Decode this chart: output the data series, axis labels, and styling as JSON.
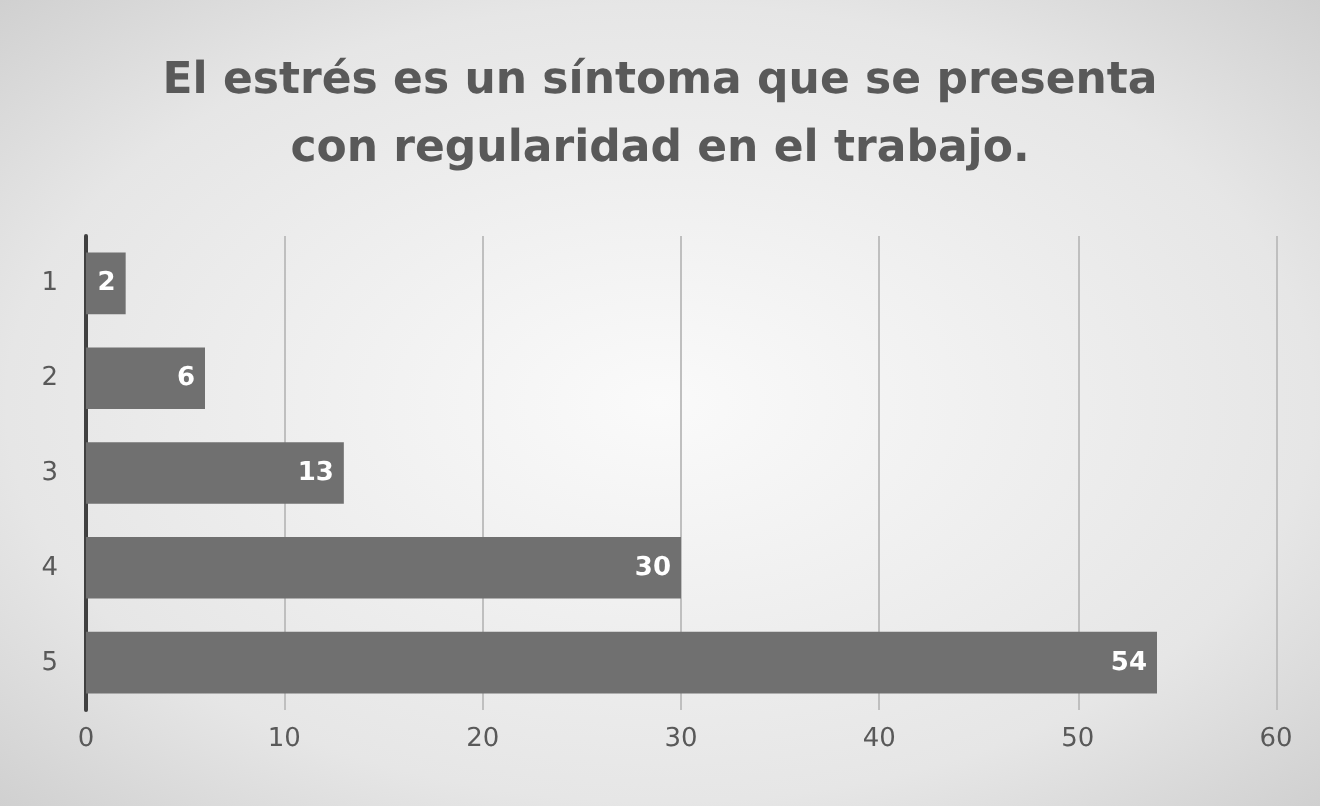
{
  "chart_data": {
    "type": "bar",
    "orientation": "horizontal",
    "title": "El estrés es un síntoma que se presenta\ncon regularidad en el trabajo.",
    "categories": [
      "1",
      "2",
      "3",
      "4",
      "5"
    ],
    "values": [
      2,
      6,
      13,
      30,
      54
    ],
    "color": "#707070",
    "xlim": [
      0,
      60
    ],
    "xticks": [
      0,
      10,
      20,
      30,
      40,
      50,
      60
    ],
    "grid": "x",
    "data_labels": true
  }
}
